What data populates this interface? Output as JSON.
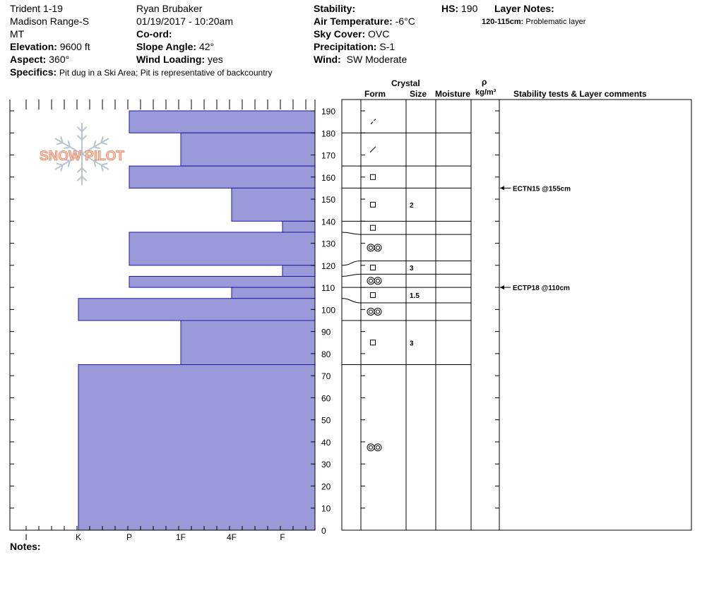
{
  "header": {
    "location": "Trident 1-19",
    "range": "Madison Range-S",
    "state": "MT",
    "elevation_label": "Elevation:",
    "elevation_value": "9600 ft",
    "aspect_label": "Aspect:",
    "aspect_value": "360°",
    "specifics_label": "Specifics:",
    "specifics_value": "Pit dug in a Ski Area; Pit is representative of backcountry",
    "observer": "Ryan Brubaker",
    "datetime": "01/19/2017 - 10:20am",
    "coord_label": "Co-ord:",
    "slope_label": "Slope Angle:",
    "slope_value": "42°",
    "wind_loading_label": "Wind Loading:",
    "wind_loading_value": "yes",
    "stability_label": "Stability:",
    "air_temp_label": "Air Temperature:",
    "air_temp_value": "-6°C",
    "sky_label": "Sky Cover:",
    "sky_value": "OVC",
    "precip_label": "Precipitation:",
    "precip_value": "S-1",
    "wind_label": "Wind:",
    "wind_value": "SW Moderate",
    "hs_label": "HS:",
    "hs_value": "190",
    "layer_notes_label": "Layer Notes:",
    "layer_note_range": "120-115cm:",
    "layer_note_text": "Problematic layer",
    "logo_text": "SNOW PILOT"
  },
  "columns": {
    "crystal": "Crystal",
    "form": "Form",
    "size": "Size",
    "moisture": "Moisture",
    "rho": "ρ",
    "density_unit": "kg/m³",
    "stability": "Stability tests & Layer comments"
  },
  "notes_label": "Notes:",
  "colors": {
    "hardness_fill": "#9a9ad8",
    "hardness_stroke": "#1a1aa8"
  },
  "chart_data": {
    "type": "bar",
    "orientation": "horizontal",
    "y_axis": {
      "min": 0,
      "max": 190,
      "ticks": [
        0,
        10,
        20,
        30,
        40,
        50,
        60,
        70,
        80,
        90,
        100,
        110,
        120,
        130,
        140,
        150,
        160,
        170,
        180,
        190
      ]
    },
    "hardness_scale": [
      "I",
      "K",
      "P",
      "1F",
      "4F",
      "F"
    ],
    "layers": [
      {
        "top": 190,
        "bottom": 180,
        "hardness": "P"
      },
      {
        "top": 180,
        "bottom": 165,
        "hardness": "1F"
      },
      {
        "top": 165,
        "bottom": 155,
        "hardness": "P"
      },
      {
        "top": 155,
        "bottom": 140,
        "hardness": "4F"
      },
      {
        "top": 140,
        "bottom": 135,
        "hardness": "F"
      },
      {
        "top": 135,
        "bottom": 120,
        "hardness": "P"
      },
      {
        "top": 120,
        "bottom": 115,
        "hardness": "F"
      },
      {
        "top": 115,
        "bottom": 110,
        "hardness": "P"
      },
      {
        "top": 110,
        "bottom": 105,
        "hardness": "4F"
      },
      {
        "top": 105,
        "bottom": 95,
        "hardness": "K"
      },
      {
        "top": 95,
        "bottom": 75,
        "hardness": "1F"
      },
      {
        "top": 75,
        "bottom": 0,
        "hardness": "K"
      }
    ],
    "right_layers": [
      {
        "top": 190,
        "bottom": 180,
        "form": "slash-dash",
        "size": ""
      },
      {
        "top": 180,
        "bottom": 165,
        "form": "slash",
        "size": ""
      },
      {
        "top": 165,
        "bottom": 155,
        "form": "square",
        "size": ""
      },
      {
        "top": 155,
        "bottom": 140,
        "form": "square",
        "size": "2"
      },
      {
        "top": 140,
        "bottom": 134,
        "form": "square",
        "size": ""
      },
      {
        "top": 134,
        "bottom": 122,
        "form": "double-circle",
        "size": ""
      },
      {
        "top": 122,
        "bottom": 116,
        "form": "square",
        "size": "3"
      },
      {
        "top": 116,
        "bottom": 110,
        "form": "double-circle",
        "size": ""
      },
      {
        "top": 110,
        "bottom": 103,
        "form": "square",
        "size": "1.5"
      },
      {
        "top": 103,
        "bottom": 95,
        "form": "double-circle",
        "size": ""
      },
      {
        "top": 95,
        "bottom": 75,
        "form": "square",
        "size": "3"
      },
      {
        "top": 75,
        "bottom": 0,
        "form": "double-circle",
        "size": ""
      }
    ],
    "stability_tests": [
      {
        "label": "ECTN15 @155cm",
        "depth": 155
      },
      {
        "label": "ECTP18 @110cm",
        "depth": 110
      }
    ]
  }
}
